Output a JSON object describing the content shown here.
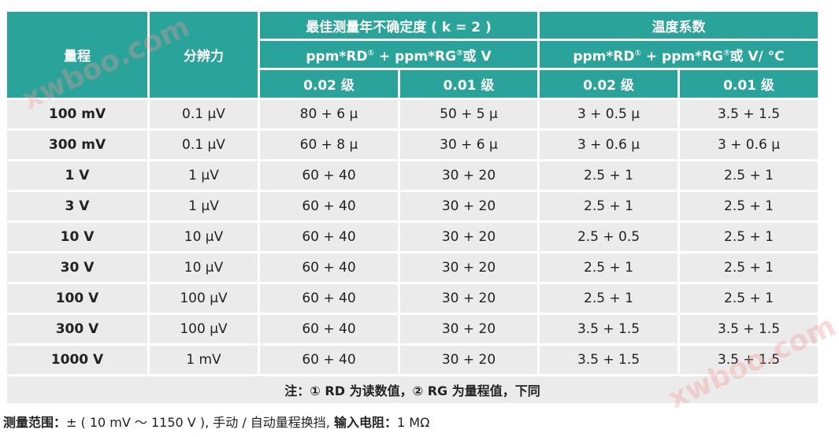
{
  "header": {
    "range": "量程",
    "resolution": "分辨力",
    "accuracy_title": "最佳测量年不确定度 ( k = 2 )",
    "accuracy_formula": "ppm*RD",
    "accuracy_formula_sup1": "①",
    "accuracy_formula_mid": " + ppm*RG",
    "accuracy_formula_sup2": "②",
    "accuracy_formula_end": "或 V",
    "temp_title": "温度系数",
    "temp_formula": "ppm*RD",
    "temp_formula_sup1": "①",
    "temp_formula_mid": " + ppm*RG",
    "temp_formula_sup2": "②",
    "temp_formula_end": "或 V/ °C",
    "grades": [
      "0.02 级",
      "0.01 级",
      "0.02 级",
      "0.01 级"
    ]
  },
  "rows": [
    {
      "range": "100 mV",
      "resolution": "0.1 μV",
      "acc002": "80 + 6 μ",
      "acc001": "50 + 5 μ",
      "tc002": "3 + 0.5 μ",
      "tc001": "3.5 + 1.5"
    },
    {
      "range": "300 mV",
      "resolution": "0.1 μV",
      "acc002": "60 + 8 μ",
      "acc001": "30 + 6 μ",
      "tc002": "3 + 0.6 μ",
      "tc001": "3 + 0.6 μ"
    },
    {
      "range": "1 V",
      "resolution": "1 μV",
      "acc002": "60 + 40",
      "acc001": "30 + 20",
      "tc002": "2.5 + 1",
      "tc001": "2.5 + 1"
    },
    {
      "range": "3 V",
      "resolution": "1 μV",
      "acc002": "60 + 40",
      "acc001": "30 + 20",
      "tc002": "2.5 + 1",
      "tc001": "2.5 + 1"
    },
    {
      "range": "10 V",
      "resolution": "10 μV",
      "acc002": "60 + 40",
      "acc001": "30 + 20",
      "tc002": "2.5 + 0.5",
      "tc001": "2.5 + 1"
    },
    {
      "range": "30 V",
      "resolution": "10 μV",
      "acc002": "60 + 40",
      "acc001": "30 + 20",
      "tc002": "2.5 + 1",
      "tc001": "2.5 + 1"
    },
    {
      "range": "100 V",
      "resolution": "100 μV",
      "acc002": "60 + 40",
      "acc001": "30 + 20",
      "tc002": "2.5 + 1",
      "tc001": "2.5 + 1"
    },
    {
      "range": "300 V",
      "resolution": "100 μV",
      "acc002": "60 + 40",
      "acc001": "30 + 20",
      "tc002": "3.5 + 1.5",
      "tc001": "3.5 + 1.5"
    },
    {
      "range": "1000 V",
      "resolution": "1 mV",
      "acc002": "60 + 40",
      "acc001": "30 + 20",
      "tc002": "3.5 + 1.5",
      "tc001": "3.5 + 1.5"
    }
  ],
  "note": "注：① RD 为读数值，② RG 为量程值，下同",
  "footer": {
    "range_label": "测量范围：",
    "range_value": "± ( 10 mV ～ 1150 V ), 手动 / 自动量程换挡, ",
    "impedance_label": "输入电阻：",
    "impedance_value": "1 MΩ"
  },
  "watermark": "xwboo.com",
  "colors": {
    "header_bg": "#2aa39a",
    "cell_bg": "#ebebeb"
  }
}
